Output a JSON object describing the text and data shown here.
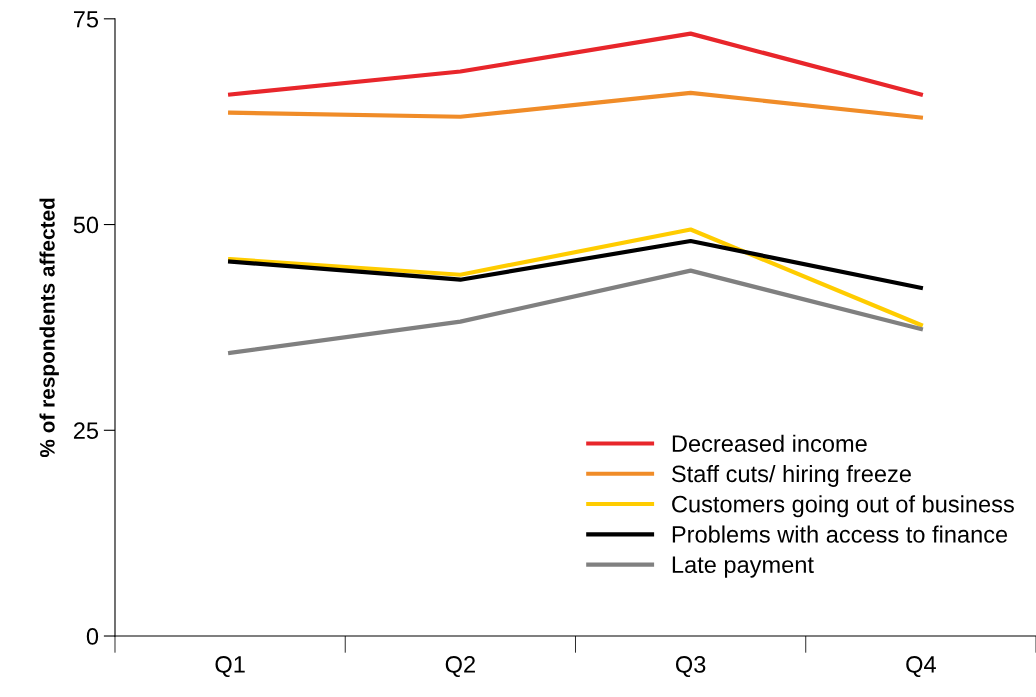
{
  "chart_data": {
    "type": "line",
    "ylabel": "% of respondents affected",
    "categories": [
      "Q1",
      "Q2",
      "Q3",
      "Q4"
    ],
    "series": [
      {
        "name": "Decreased income",
        "color": "#e8262b",
        "values": [
          65.8,
          68.6,
          73.2,
          65.8
        ]
      },
      {
        "name": "Staff cuts/ hiring freeze",
        "color": "#f08c28",
        "values": [
          63.6,
          63.1,
          66.0,
          63.0
        ]
      },
      {
        "name": "Customers going out of business",
        "color": "#ffcc00",
        "values": [
          45.8,
          43.9,
          49.4,
          37.8
        ]
      },
      {
        "name": "Problems with access to finance",
        "color": "#000000",
        "values": [
          45.5,
          43.3,
          48.0,
          42.3
        ]
      },
      {
        "name": "Late payment",
        "color": "#808080",
        "values": [
          34.4,
          38.2,
          44.4,
          37.3
        ]
      }
    ],
    "ylim": [
      0,
      75
    ],
    "yticks": [
      0,
      25,
      50,
      75
    ],
    "grid": false,
    "legend": "bottom right",
    "marker": "none",
    "line_style": "solid"
  }
}
